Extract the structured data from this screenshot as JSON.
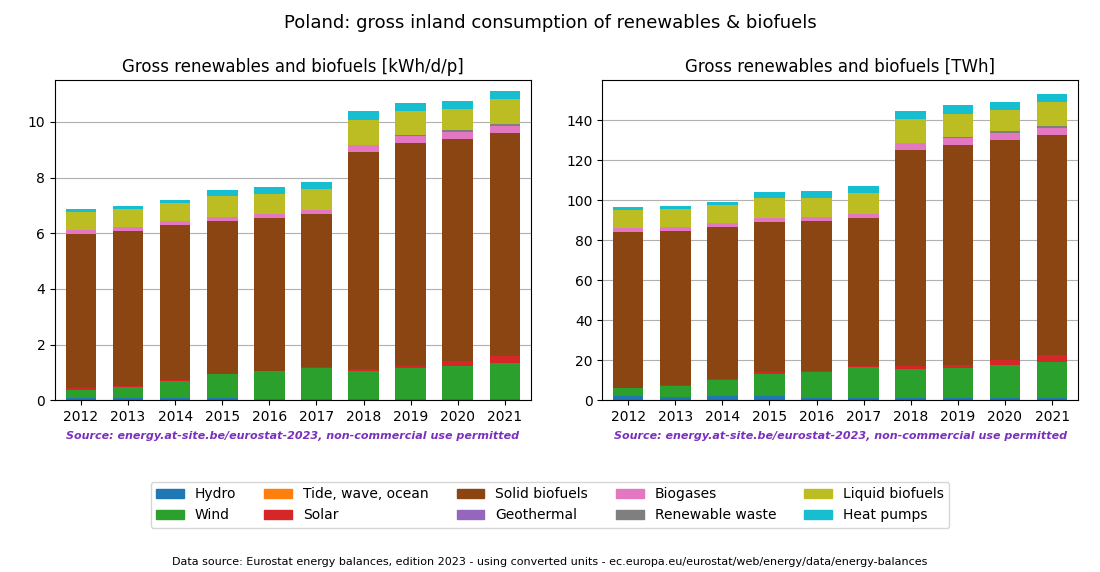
{
  "title": "Poland: gross inland consumption of renewables & biofuels",
  "annotations": [
    "Data source: Eurostat energy balances, edition 2023 - using converted units - ec.europa.eu/eurostat/web/energy/data/energy-balances"
  ],
  "legend": "lower center",
  "chart_data": [
    {
      "type": "bar",
      "stacked": true,
      "grid": true,
      "title": "Gross renewables and biofuels [kWh/d/p]",
      "categories": [
        "2012",
        "2013",
        "2014",
        "2015",
        "2016",
        "2017",
        "2018",
        "2019",
        "2020",
        "2021"
      ],
      "ylim": [
        0,
        11.5
      ],
      "yticks": [
        0,
        2,
        4,
        6,
        8,
        10
      ],
      "annotations": [
        {
          "text": "Source: energy.at-site.be/eurostat-2023, non-commercial use permitted",
          "color": "#7B2FBE"
        }
      ],
      "series": [
        {
          "name": "Hydro",
          "color": "#1f77b4",
          "values": [
            0.1,
            0.1,
            0.1,
            0.1,
            0.05,
            0.05,
            0.05,
            0.05,
            0.05,
            0.05
          ]
        },
        {
          "name": "Wind",
          "color": "#2ca02c",
          "values": [
            0.28,
            0.38,
            0.58,
            0.85,
            1.0,
            1.1,
            1.0,
            1.1,
            1.2,
            1.3
          ]
        },
        {
          "name": "Tide, wave, ocean",
          "color": "#ff7f0e",
          "values": [
            0.0,
            0.0,
            0.0,
            0.0,
            0.0,
            0.0,
            0.0,
            0.0,
            0.0,
            0.0
          ]
        },
        {
          "name": "Solar",
          "color": "#d62728",
          "values": [
            0.05,
            0.05,
            0.05,
            0.0,
            0.0,
            0.05,
            0.08,
            0.1,
            0.15,
            0.25
          ]
        },
        {
          "name": "Solid biofuels",
          "color": "#8B4513",
          "values": [
            5.55,
            5.55,
            5.55,
            5.5,
            5.5,
            5.5,
            7.8,
            8.0,
            8.0,
            8.0
          ]
        },
        {
          "name": "Geothermal",
          "color": "#9467bd",
          "values": [
            0.0,
            0.0,
            0.0,
            0.0,
            0.0,
            0.0,
            0.0,
            0.0,
            0.0,
            0.0
          ]
        },
        {
          "name": "Biogases",
          "color": "#e377c2",
          "values": [
            0.15,
            0.15,
            0.15,
            0.15,
            0.15,
            0.15,
            0.25,
            0.25,
            0.25,
            0.25
          ]
        },
        {
          "name": "Renewable waste",
          "color": "#7f7f7f",
          "values": [
            0.0,
            0.0,
            0.0,
            0.0,
            0.0,
            0.0,
            0.0,
            0.03,
            0.06,
            0.06
          ]
        },
        {
          "name": "Liquid biofuels",
          "color": "#bcbd22",
          "values": [
            0.65,
            0.65,
            0.65,
            0.75,
            0.7,
            0.75,
            0.9,
            0.85,
            0.75,
            0.9
          ]
        },
        {
          "name": "Heat pumps",
          "color": "#17becf",
          "values": [
            0.1,
            0.1,
            0.1,
            0.2,
            0.25,
            0.25,
            0.3,
            0.3,
            0.3,
            0.3
          ]
        }
      ]
    },
    {
      "type": "bar",
      "stacked": true,
      "grid": true,
      "title": "Gross renewables and biofuels [TWh]",
      "categories": [
        "2012",
        "2013",
        "2014",
        "2015",
        "2016",
        "2017",
        "2018",
        "2019",
        "2020",
        "2021"
      ],
      "ylim": [
        0,
        160
      ],
      "yticks": [
        0,
        20,
        40,
        60,
        80,
        100,
        120,
        140
      ],
      "annotations": [
        {
          "text": "Source: energy.at-site.be/eurostat-2023, non-commercial use permitted",
          "color": "#7B2FBE"
        }
      ],
      "series": [
        {
          "name": "Hydro",
          "color": "#1f77b4",
          "values": [
            2.0,
            1.5,
            2.0,
            2.0,
            1.0,
            1.0,
            1.0,
            1.0,
            1.0,
            1.0
          ]
        },
        {
          "name": "Wind",
          "color": "#2ca02c",
          "values": [
            4.0,
            5.5,
            8.0,
            11.0,
            13.0,
            15.5,
            14.5,
            15.0,
            16.5,
            18.0
          ]
        },
        {
          "name": "Tide, wave, ocean",
          "color": "#ff7f0e",
          "values": [
            0.0,
            0.0,
            0.0,
            0.0,
            0.0,
            0.0,
            0.0,
            0.0,
            0.0,
            0.0
          ]
        },
        {
          "name": "Solar",
          "color": "#d62728",
          "values": [
            0.0,
            0.5,
            0.5,
            1.0,
            0.5,
            0.5,
            1.5,
            1.5,
            2.5,
            3.5
          ]
        },
        {
          "name": "Solid biofuels",
          "color": "#8B4513",
          "values": [
            78.0,
            77.0,
            76.0,
            75.0,
            75.0,
            74.0,
            108.0,
            110.0,
            110.0,
            110.0
          ]
        },
        {
          "name": "Geothermal",
          "color": "#9467bd",
          "values": [
            0.0,
            0.0,
            0.0,
            0.0,
            0.0,
            0.0,
            0.0,
            0.0,
            0.0,
            0.0
          ]
        },
        {
          "name": "Biogases",
          "color": "#e377c2",
          "values": [
            2.0,
            2.0,
            2.0,
            2.0,
            2.0,
            2.0,
            3.5,
            3.5,
            3.5,
            3.5
          ]
        },
        {
          "name": "Renewable waste",
          "color": "#7f7f7f",
          "values": [
            0.0,
            0.0,
            0.0,
            0.0,
            0.0,
            0.0,
            0.0,
            0.5,
            1.0,
            1.0
          ]
        },
        {
          "name": "Liquid biofuels",
          "color": "#bcbd22",
          "values": [
            9.0,
            9.0,
            9.0,
            10.0,
            9.5,
            10.5,
            12.0,
            11.5,
            10.5,
            12.0
          ]
        },
        {
          "name": "Heat pumps",
          "color": "#17becf",
          "values": [
            1.5,
            1.5,
            1.5,
            3.0,
            3.5,
            3.5,
            4.0,
            4.5,
            4.0,
            4.0
          ]
        }
      ]
    }
  ]
}
